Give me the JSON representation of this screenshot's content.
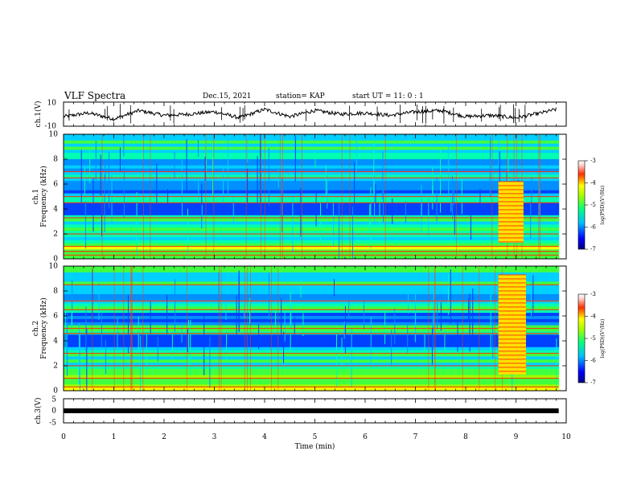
{
  "header": {
    "title": "VLF Spectra",
    "date": "Dec.15, 2021",
    "station": "station= KAP",
    "start": "start  UT =   11: 0  : 1"
  },
  "chart_data": [
    {
      "type": "line",
      "name": "ch.1 waveform",
      "ylabel": "ch.1(V)",
      "ylim": [
        -10,
        10
      ],
      "yticks": [
        "10",
        "-10"
      ],
      "xlim": [
        0,
        10
      ],
      "x": [
        0,
        0.5,
        1,
        1.5,
        2,
        2.5,
        3,
        3.5,
        4,
        4.5,
        5,
        5.5,
        6,
        6.5,
        7,
        7.5,
        8,
        8.5,
        9,
        9.5,
        9.8
      ],
      "y": [
        -2,
        1,
        -4,
        3,
        -1,
        0,
        2,
        -3,
        4,
        -2,
        3,
        0,
        1,
        -1,
        2,
        3,
        -2,
        -1,
        -3,
        1,
        4
      ]
    },
    {
      "type": "heatmap",
      "name": "ch.1 spectrogram",
      "ylabel": [
        "ch.1",
        "Frequency (kHz)"
      ],
      "ylim": [
        0,
        10
      ],
      "yticks": [
        "0",
        "2",
        "4",
        "6",
        "8",
        "10"
      ],
      "xlim": [
        0,
        10
      ],
      "colorbar": {
        "label": "log(PSD)(V²/Hz)",
        "ticks": [
          "-3",
          "-4",
          "-5",
          "-6",
          "-7"
        ],
        "range": [
          -7,
          -3
        ]
      },
      "band_freqs_khz": [
        0.3,
        0.6,
        1.0,
        2.0,
        3.3,
        4.5,
        5.0,
        6.5,
        7.0
      ],
      "burst_x_min": [
        8.65,
        9.15
      ]
    },
    {
      "type": "heatmap",
      "name": "ch.2 spectrogram",
      "ylabel": [
        "ch.2",
        "Frequency (kHz)"
      ],
      "ylim": [
        0,
        10
      ],
      "yticks": [
        "0",
        "2",
        "4",
        "6",
        "8",
        "10"
      ],
      "xlim": [
        0,
        10
      ],
      "colorbar": {
        "label": "log(PSD)(V²/Hz)",
        "ticks": [
          "-3",
          "-4",
          "-5",
          "-6",
          "-7"
        ],
        "range": [
          -7,
          -3
        ]
      },
      "band_freqs_khz": [
        0.3,
        1.0,
        2.0,
        3.0,
        4.6,
        5.0,
        6.5,
        7.2,
        8.5
      ],
      "burst_x_min": [
        8.65,
        9.2
      ]
    },
    {
      "type": "line",
      "name": "ch.3 signal",
      "ylabel": "ch.3(V)",
      "ylim": [
        -5,
        5
      ],
      "yticks": [
        "5",
        "0",
        "-5"
      ],
      "xlim": [
        0,
        10
      ],
      "x": [
        0,
        9.85
      ],
      "y": [
        0,
        0
      ]
    }
  ],
  "xaxis": {
    "label": "Time  (min)",
    "ticks": [
      "0",
      "1",
      "2",
      "3",
      "4",
      "5",
      "6",
      "7",
      "8",
      "9",
      "10"
    ]
  }
}
